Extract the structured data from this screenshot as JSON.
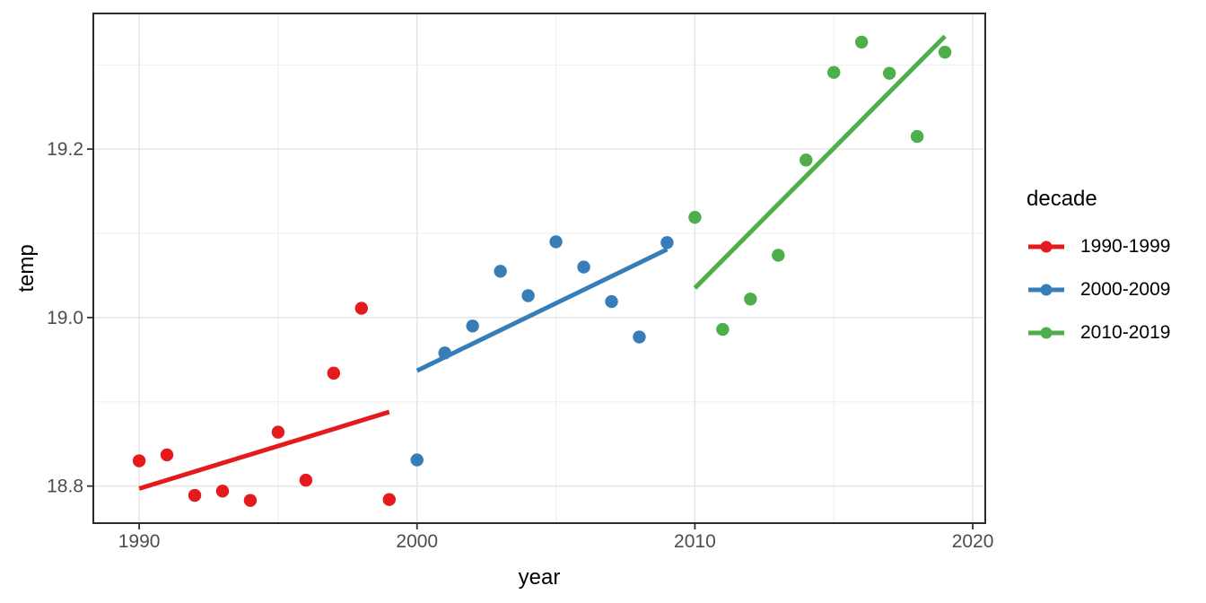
{
  "chart_data": {
    "type": "scatter",
    "title": "",
    "xlabel": "year",
    "ylabel": "temp",
    "legend_title": "decade",
    "legend_position": "right",
    "grid": true,
    "xlim": [
      1988.35,
      2020.45
    ],
    "ylim": [
      18.756,
      19.361
    ],
    "x_ticks": [
      {
        "label": "1990",
        "value": 1990
      },
      {
        "label": "2000",
        "value": 2000
      },
      {
        "label": "2010",
        "value": 2010
      },
      {
        "label": "2020",
        "value": 2020
      }
    ],
    "y_ticks": [
      {
        "label": "18.8",
        "value": 18.8
      },
      {
        "label": "19.0",
        "value": 19.0
      },
      {
        "label": "19.2",
        "value": 19.2
      }
    ],
    "x_minor_gridlines": [
      1995,
      2005,
      2015
    ],
    "y_minor_gridlines": [
      18.9,
      19.1,
      19.3
    ],
    "series": [
      {
        "name": "1990-1999",
        "color": "#E41A1C",
        "points": [
          [
            1990,
            18.83
          ],
          [
            1991,
            18.837
          ],
          [
            1992,
            18.789
          ],
          [
            1993,
            18.794
          ],
          [
            1994,
            18.783
          ],
          [
            1995,
            18.864
          ],
          [
            1996,
            18.807
          ],
          [
            1997,
            18.934
          ],
          [
            1998,
            19.011
          ],
          [
            1999,
            18.784
          ]
        ],
        "trend": [
          [
            1990,
            18.797
          ],
          [
            1999,
            18.888
          ]
        ]
      },
      {
        "name": "2000-2009",
        "color": "#377EB8",
        "points": [
          [
            2000,
            18.831
          ],
          [
            2001,
            18.958
          ],
          [
            2002,
            18.99
          ],
          [
            2003,
            19.055
          ],
          [
            2004,
            19.026
          ],
          [
            2005,
            19.09
          ],
          [
            2006,
            19.06
          ],
          [
            2007,
            19.019
          ],
          [
            2008,
            18.977
          ],
          [
            2009,
            19.089
          ]
        ],
        "trend": [
          [
            2000,
            18.937
          ],
          [
            2009,
            19.081
          ]
        ]
      },
      {
        "name": "2010-2019",
        "color": "#4DAF4A",
        "points": [
          [
            2010,
            19.119
          ],
          [
            2011,
            18.986
          ],
          [
            2012,
            19.022
          ],
          [
            2013,
            19.074
          ],
          [
            2014,
            19.187
          ],
          [
            2015,
            19.291
          ],
          [
            2016,
            19.327
          ],
          [
            2017,
            19.29
          ],
          [
            2018,
            19.215
          ],
          [
            2019,
            19.315
          ]
        ],
        "trend": [
          [
            2010,
            19.035
          ],
          [
            2019,
            19.334
          ]
        ]
      }
    ],
    "style": {
      "background": "#FFFFFF",
      "panel_background": "#FFFFFF",
      "panel_border": "#2B2B2B",
      "grid_major": "#E4E4E4",
      "grid_minor": "#EFEFEF",
      "tick_color": "#333333",
      "tick_label_color": "#4D4D4D",
      "title_color": "#000000"
    }
  }
}
